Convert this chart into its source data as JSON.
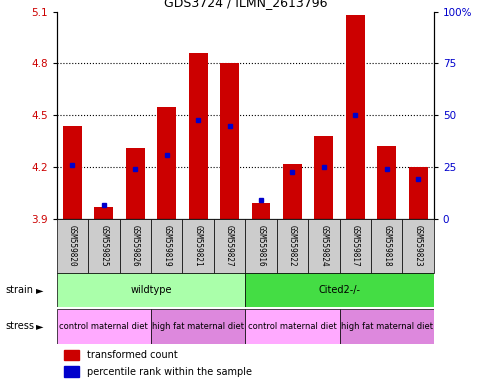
{
  "title": "GDS3724 / ILMN_2613796",
  "samples": [
    "GSM559820",
    "GSM559825",
    "GSM559826",
    "GSM559819",
    "GSM559821",
    "GSM559827",
    "GSM559816",
    "GSM559822",
    "GSM559824",
    "GSM559817",
    "GSM559818",
    "GSM559823"
  ],
  "red_values": [
    4.44,
    3.97,
    4.31,
    4.55,
    4.86,
    4.8,
    3.99,
    4.22,
    4.38,
    5.08,
    4.32,
    4.2
  ],
  "blue_values": [
    4.21,
    3.98,
    4.19,
    4.27,
    4.47,
    4.44,
    4.01,
    4.17,
    4.2,
    4.5,
    4.19,
    4.13
  ],
  "ylim_left": [
    3.9,
    5.1
  ],
  "ylim_right": [
    0,
    100
  ],
  "yticks_left": [
    3.9,
    4.2,
    4.5,
    4.8,
    5.1
  ],
  "yticks_right": [
    0,
    25,
    50,
    75,
    100
  ],
  "bar_color": "#cc0000",
  "blue_color": "#0000cc",
  "left_axis_color": "#cc0000",
  "right_axis_color": "#0000cc",
  "strain_groups": [
    {
      "label": "wildtype",
      "start": 0,
      "end": 6,
      "color": "#aaffaa"
    },
    {
      "label": "Cited2-/-",
      "start": 6,
      "end": 12,
      "color": "#44dd44"
    }
  ],
  "stress_groups": [
    {
      "label": "control maternal diet",
      "start": 0,
      "end": 3,
      "color": "#ffaaff"
    },
    {
      "label": "high fat maternal diet",
      "start": 3,
      "end": 6,
      "color": "#dd88dd"
    },
    {
      "label": "control maternal diet",
      "start": 6,
      "end": 9,
      "color": "#ffaaff"
    },
    {
      "label": "high fat maternal diet",
      "start": 9,
      "end": 12,
      "color": "#dd88dd"
    }
  ],
  "legend_items": [
    {
      "label": "transformed count",
      "color": "#cc0000"
    },
    {
      "label": "percentile rank within the sample",
      "color": "#0000cc"
    }
  ],
  "base_value": 3.9,
  "bar_width": 0.6,
  "bg_color": "#ffffff"
}
